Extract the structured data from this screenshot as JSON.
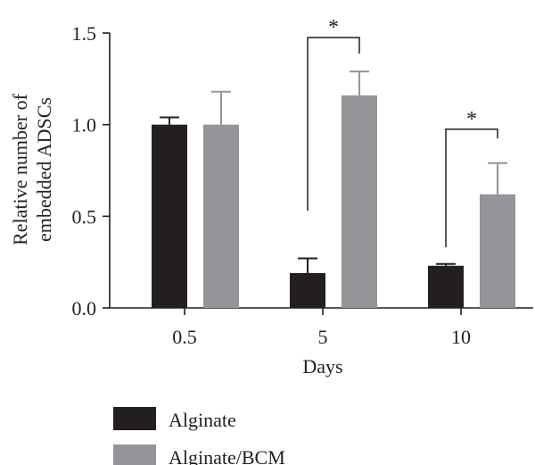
{
  "chart_data": {
    "type": "bar",
    "categories": [
      "0.5",
      "5",
      "10"
    ],
    "series": [
      {
        "name": "Alginate",
        "color": "#231f20",
        "values": [
          1.0,
          0.19,
          0.23
        ],
        "errors": [
          0.04,
          0.08,
          0.01
        ]
      },
      {
        "name": "Alginate/BCM",
        "color": "#939598",
        "values": [
          1.0,
          1.16,
          0.62
        ],
        "errors": [
          0.18,
          0.13,
          0.17
        ]
      }
    ],
    "xlabel": "Days",
    "ylabel": [
      "Relative number of",
      "embedded ADSCs"
    ],
    "ylim": [
      0,
      1.5
    ],
    "yticks": [
      "0.0",
      "0.5",
      "1.0",
      "1.5"
    ],
    "significance": [
      {
        "category_index": 1,
        "label": "*"
      },
      {
        "category_index": 2,
        "label": "*"
      }
    ],
    "legend_position": "bottom-left",
    "grid": false
  }
}
